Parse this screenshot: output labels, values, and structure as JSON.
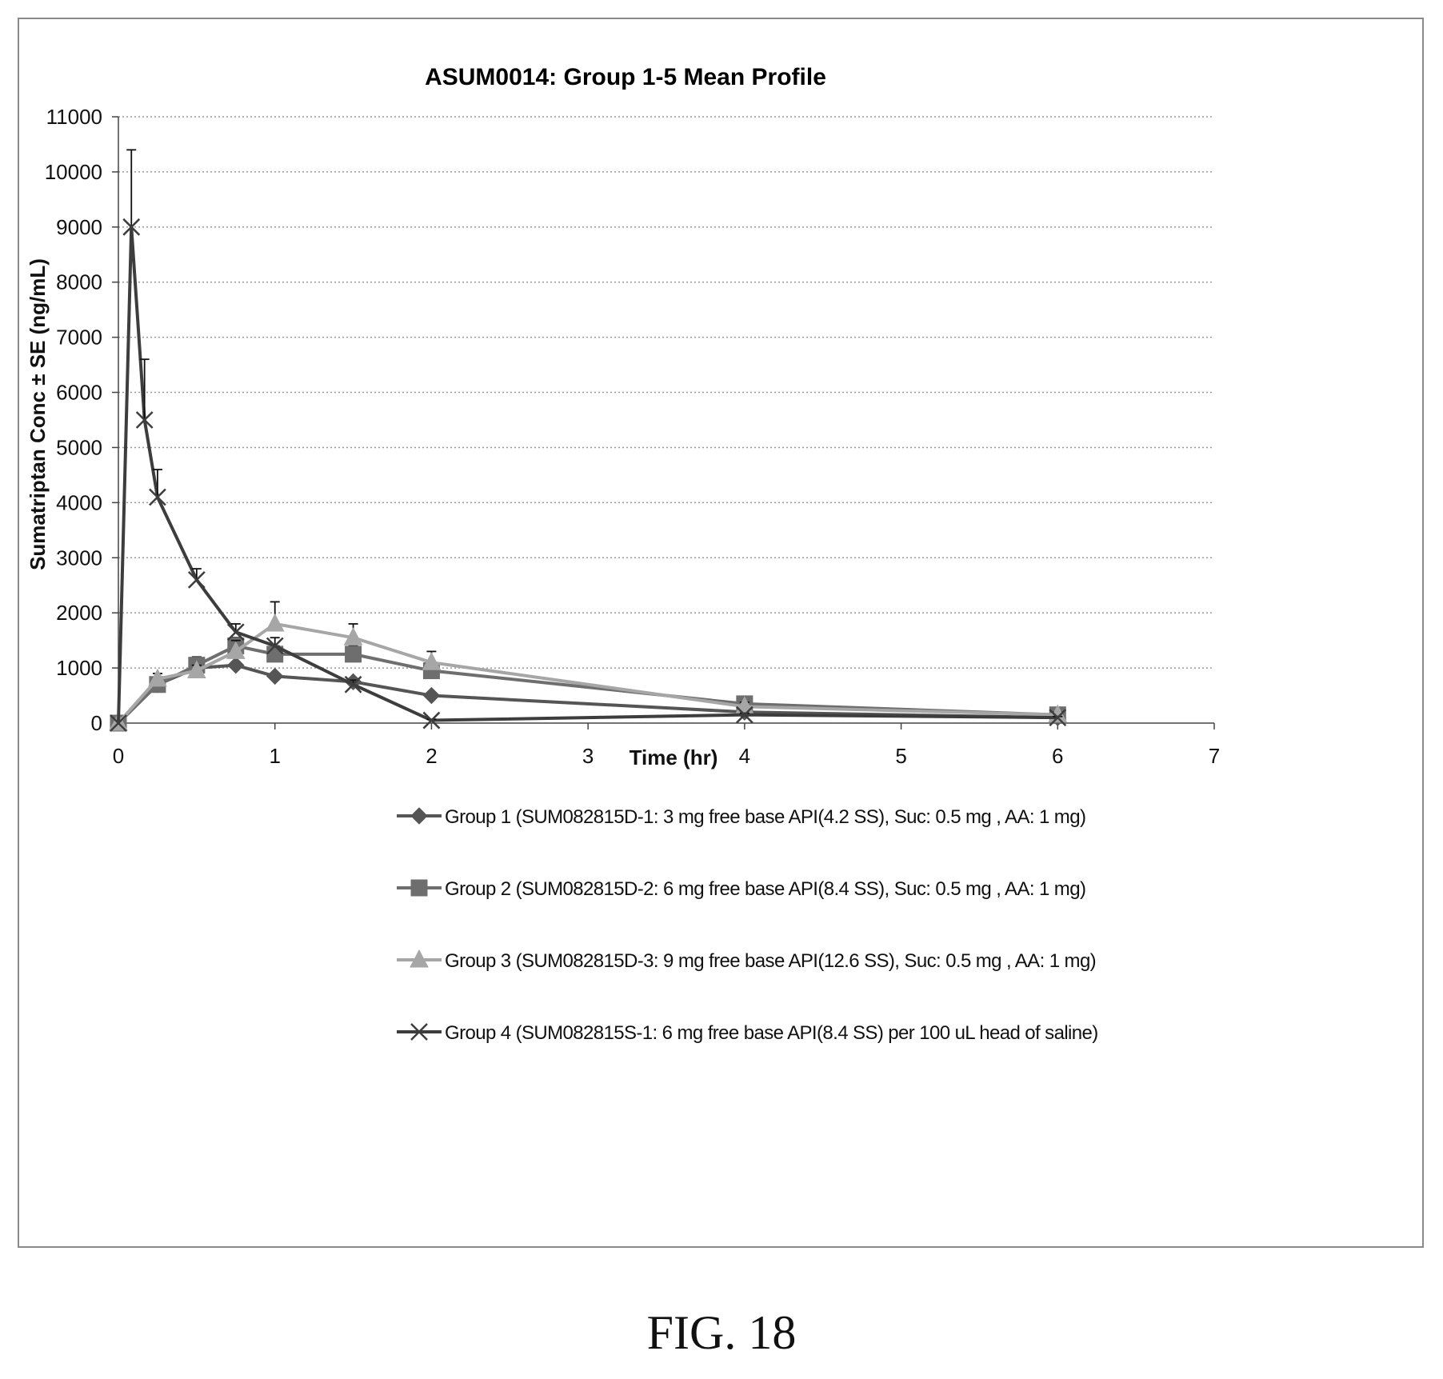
{
  "figure": {
    "caption": "FIG. 18"
  },
  "chart_data": {
    "type": "line",
    "title": "ASUM0014: Group 1-5 Mean Profile",
    "xlabel": "Time (hr)",
    "ylabel": "Sumatriptan Conc ± SE (ng/mL)",
    "xlim": [
      0,
      7
    ],
    "ylim": [
      0,
      11000
    ],
    "xticks": [
      0,
      1,
      2,
      3,
      4,
      5,
      6,
      7
    ],
    "yticks": [
      0,
      1000,
      2000,
      3000,
      4000,
      5000,
      6000,
      7000,
      8000,
      9000,
      10000,
      11000
    ],
    "grid": "horizontal dotted",
    "legend_position": "bottom",
    "series": [
      {
        "name": "Group 1 (SUM082815D-1: 3 mg free base API(4.2 SS), Suc: 0.5 mg , AA: 1 mg)",
        "marker": "diamond",
        "color": "#555555",
        "x": [
          0,
          0.25,
          0.5,
          0.75,
          1,
          1.5,
          2,
          4,
          6
        ],
        "y": [
          0,
          700,
          1000,
          1050,
          850,
          750,
          500,
          200,
          100
        ],
        "err": [
          0,
          50,
          80,
          60,
          50,
          60,
          40,
          30,
          20
        ]
      },
      {
        "name": "Group 2 (SUM082815D-2: 6 mg free base API(8.4 SS), Suc: 0.5 mg , AA: 1 mg)",
        "marker": "square",
        "color": "#6e6e6e",
        "x": [
          0,
          0.25,
          0.5,
          0.75,
          1,
          1.5,
          2,
          4,
          6
        ],
        "y": [
          0,
          700,
          1050,
          1400,
          1250,
          1250,
          950,
          350,
          150
        ],
        "err": [
          0,
          70,
          150,
          150,
          150,
          150,
          100,
          80,
          50
        ]
      },
      {
        "name": "Group 3 (SUM082815D-3: 9 mg free base API(12.6 SS), Suc: 0.5 mg , AA: 1 mg)",
        "marker": "triangle",
        "color": "#a6a6a6",
        "x": [
          0,
          0.25,
          0.5,
          0.75,
          1,
          1.5,
          2,
          4,
          6
        ],
        "y": [
          0,
          800,
          950,
          1300,
          1800,
          1550,
          1100,
          300,
          150
        ],
        "err": [
          0,
          100,
          100,
          200,
          400,
          250,
          200,
          80,
          50
        ]
      },
      {
        "name": "Group 4 (SUM082815S-1: 6 mg free base API(8.4 SS) per 100 uL head of saline)",
        "marker": "x",
        "color": "#3d3d3d",
        "x": [
          0,
          0.083,
          0.167,
          0.25,
          0.5,
          0.75,
          1,
          1.5,
          2,
          4,
          6
        ],
        "y": [
          0,
          9000,
          5500,
          4100,
          2600,
          1650,
          1400,
          700,
          50,
          150,
          100
        ],
        "err": [
          0,
          1400,
          1100,
          500,
          200,
          150,
          150,
          80,
          20,
          30,
          20
        ]
      }
    ]
  }
}
